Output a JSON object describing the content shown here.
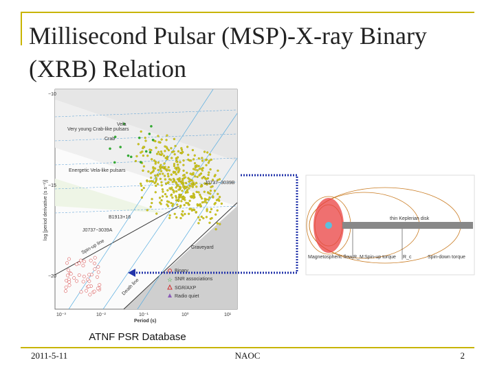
{
  "slide": {
    "title": "Millisecond Pulsar (MSP)-X-ray Binary (XRB) Relation",
    "caption": "ATNF PSR Database",
    "footer": {
      "date": "2011-5-11",
      "org": "NAOC",
      "page": "2"
    },
    "ppdot": {
      "y_label": "log [period derivative (s s⁻¹)]",
      "x_label": "Period (s)",
      "yticks": [
        "−10",
        "−15",
        "−20"
      ],
      "xticks": [
        "10⁻³",
        "10⁻²",
        "10⁻¹",
        "10⁰",
        "10¹"
      ],
      "regions": [
        "Very young Crab-like pulsars",
        "Energetic Vela-like pulsars",
        "Graveyard",
        "Spin-up line",
        "Death line"
      ],
      "objects": [
        "Vela",
        "Crab",
        "J0737−3039B",
        "B1913+16",
        "J0737−3039A"
      ],
      "legend": [
        "Binary",
        "SNR associations",
        "SGR/AXP",
        "Radio quiet"
      ]
    },
    "disk": {
      "labels": [
        "thin Keplerian disk",
        "Magnetospheric flow",
        "R_M",
        "Spin-up torque",
        "R_c",
        "Spin-down torque"
      ]
    }
  }
}
